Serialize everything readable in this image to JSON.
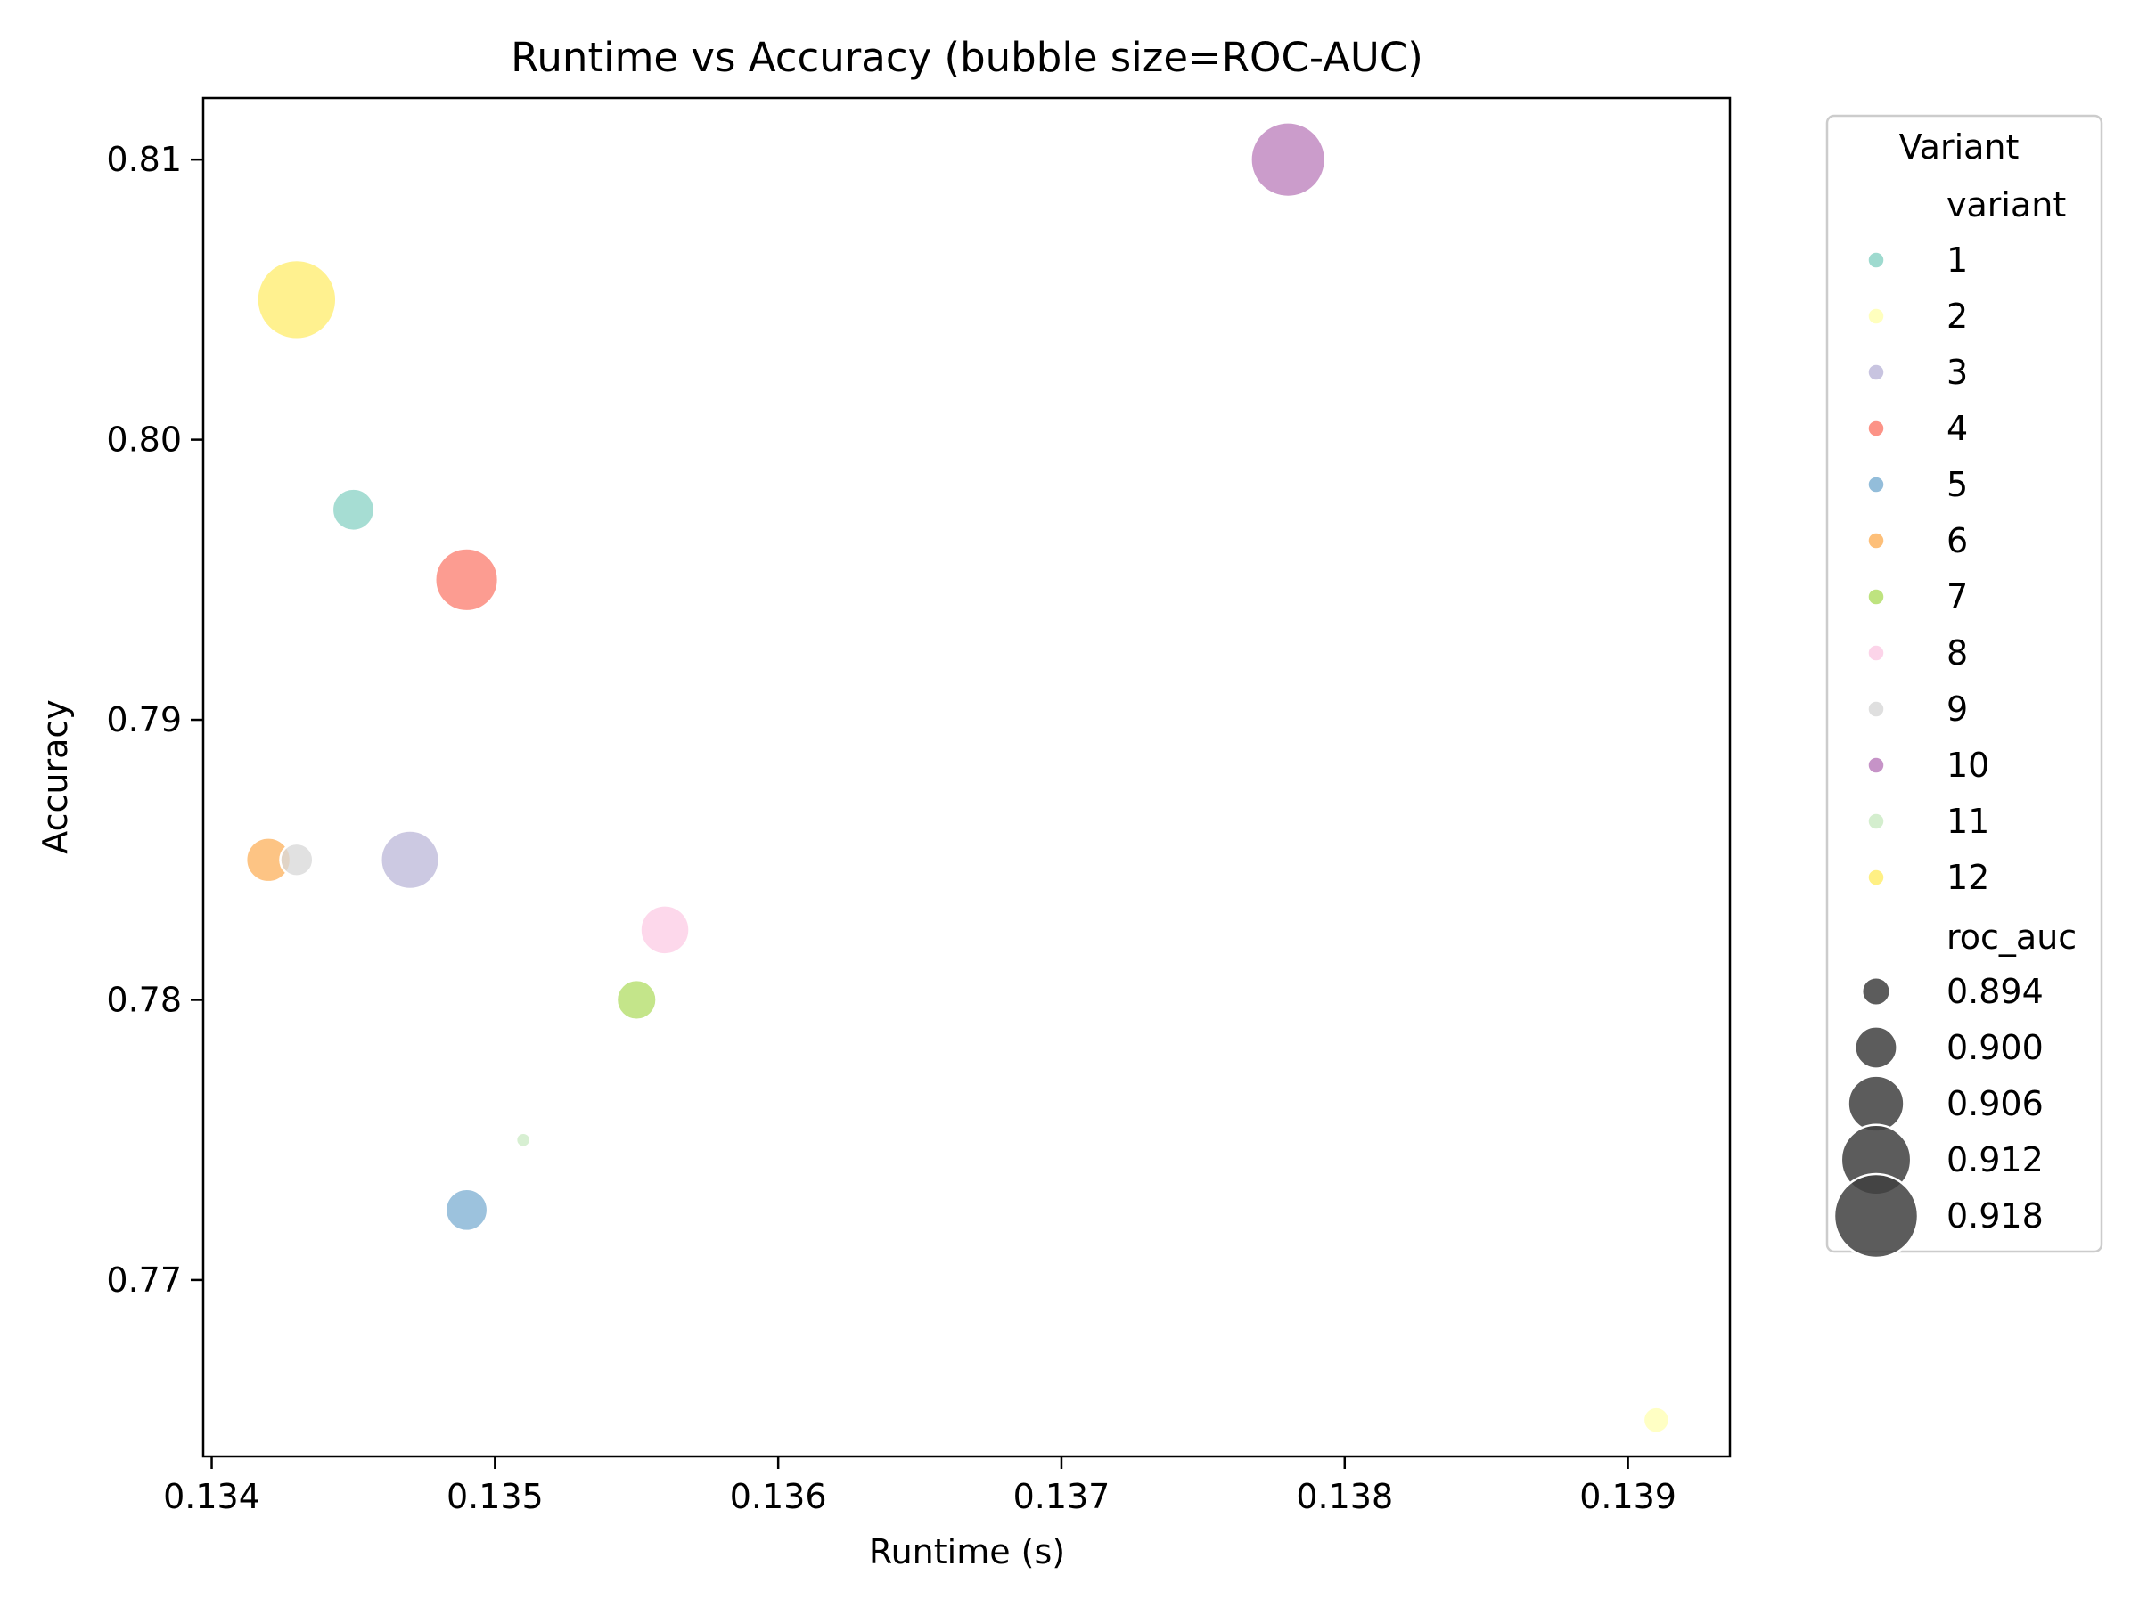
{
  "chart_data": {
    "type": "scatter",
    "title": "Runtime vs Accuracy (bubble size=ROC-AUC)",
    "xlabel": "Runtime (s)",
    "ylabel": "Accuracy",
    "xlim": [
      0.13397,
      0.13936
    ],
    "ylim": [
      0.7637,
      0.8122
    ],
    "xticks": [
      0.134,
      0.135,
      0.136,
      0.137,
      0.138,
      0.139
    ],
    "xtick_labels": [
      "0.134",
      "0.135",
      "0.136",
      "0.137",
      "0.138",
      "0.139"
    ],
    "yticks": [
      0.77,
      0.78,
      0.79,
      0.8,
      0.81
    ],
    "ytick_labels": [
      "0.77",
      "0.78",
      "0.79",
      "0.80",
      "0.81"
    ],
    "grid": false,
    "legend": {
      "title": "Variant",
      "placement": "outside right",
      "hue_title": "variant",
      "size_title": "roc_auc",
      "size_entries": [
        {
          "label": "0.894",
          "value": 0.894
        },
        {
          "label": "0.900",
          "value": 0.9
        },
        {
          "label": "0.906",
          "value": 0.906
        },
        {
          "label": "0.912",
          "value": 0.912
        },
        {
          "label": "0.918",
          "value": 0.918
        }
      ],
      "size_color": "#3f3f3f"
    },
    "points": [
      {
        "variant": "1",
        "runtime": 0.1345,
        "accuracy": 0.7975,
        "roc_auc": 0.9,
        "color": "#8dd3c7"
      },
      {
        "variant": "2",
        "runtime": 0.1391,
        "accuracy": 0.765,
        "roc_auc": 0.893,
        "color": "#ffffb3"
      },
      {
        "variant": "3",
        "runtime": 0.1347,
        "accuracy": 0.785,
        "roc_auc": 0.907,
        "color": "#bebada"
      },
      {
        "variant": "4",
        "runtime": 0.1349,
        "accuracy": 0.795,
        "roc_auc": 0.909,
        "color": "#fb8072"
      },
      {
        "variant": "5",
        "runtime": 0.1349,
        "accuracy": 0.7725,
        "roc_auc": 0.9,
        "color": "#80b1d3"
      },
      {
        "variant": "6",
        "runtime": 0.1342,
        "accuracy": 0.785,
        "roc_auc": 0.901,
        "color": "#fdb462"
      },
      {
        "variant": "7",
        "runtime": 0.1355,
        "accuracy": 0.78,
        "roc_auc": 0.899,
        "color": "#b3de69"
      },
      {
        "variant": "8",
        "runtime": 0.1356,
        "accuracy": 0.7825,
        "roc_auc": 0.903,
        "color": "#fccde5"
      },
      {
        "variant": "9",
        "runtime": 0.1343,
        "accuracy": 0.785,
        "roc_auc": 0.896,
        "color": "#d9d9d9"
      },
      {
        "variant": "10",
        "runtime": 0.1378,
        "accuracy": 0.81,
        "roc_auc": 0.914,
        "color": "#bc80bd"
      },
      {
        "variant": "11",
        "runtime": 0.1351,
        "accuracy": 0.775,
        "roc_auc": 0.888,
        "color": "#ccebc5"
      },
      {
        "variant": "12",
        "runtime": 0.1343,
        "accuracy": 0.805,
        "roc_auc": 0.916,
        "color": "#ffed6f"
      }
    ]
  }
}
